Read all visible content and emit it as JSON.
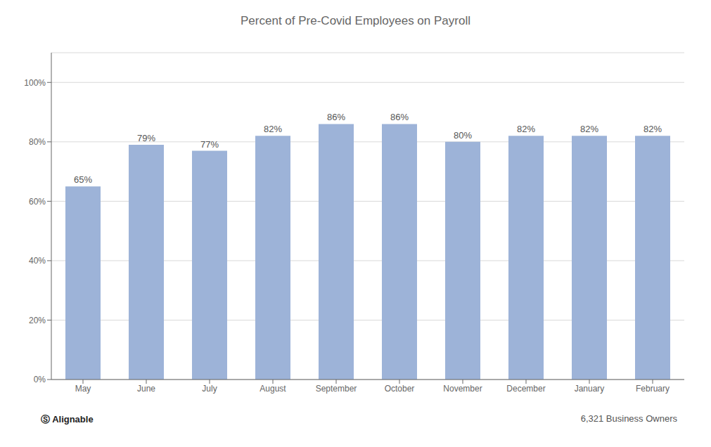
{
  "chart_data": {
    "type": "bar",
    "title": "Percent of Pre-Covid Employees on Payroll",
    "categories": [
      "May",
      "June",
      "July",
      "August",
      "September",
      "October",
      "November",
      "December",
      "January",
      "February"
    ],
    "values": [
      65,
      79,
      77,
      82,
      86,
      86,
      80,
      82,
      82,
      82
    ],
    "value_labels": [
      "65%",
      "79%",
      "77%",
      "82%",
      "86%",
      "86%",
      "80%",
      "82%",
      "82%",
      "82%"
    ],
    "data_labels": true,
    "color": "#9db3d8",
    "ylim": [
      0,
      110
    ],
    "yticks": [
      {
        "value": 0,
        "label": "0%"
      },
      {
        "value": 20,
        "label": "20%"
      },
      {
        "value": 40,
        "label": "40%"
      },
      {
        "value": 60,
        "label": "60%"
      },
      {
        "value": 80,
        "label": "80%"
      },
      {
        "value": 100,
        "label": "100%"
      }
    ],
    "grid": true,
    "annotations": [
      "6,321 Business Owners",
      "Ⓢ Alignable"
    ]
  }
}
